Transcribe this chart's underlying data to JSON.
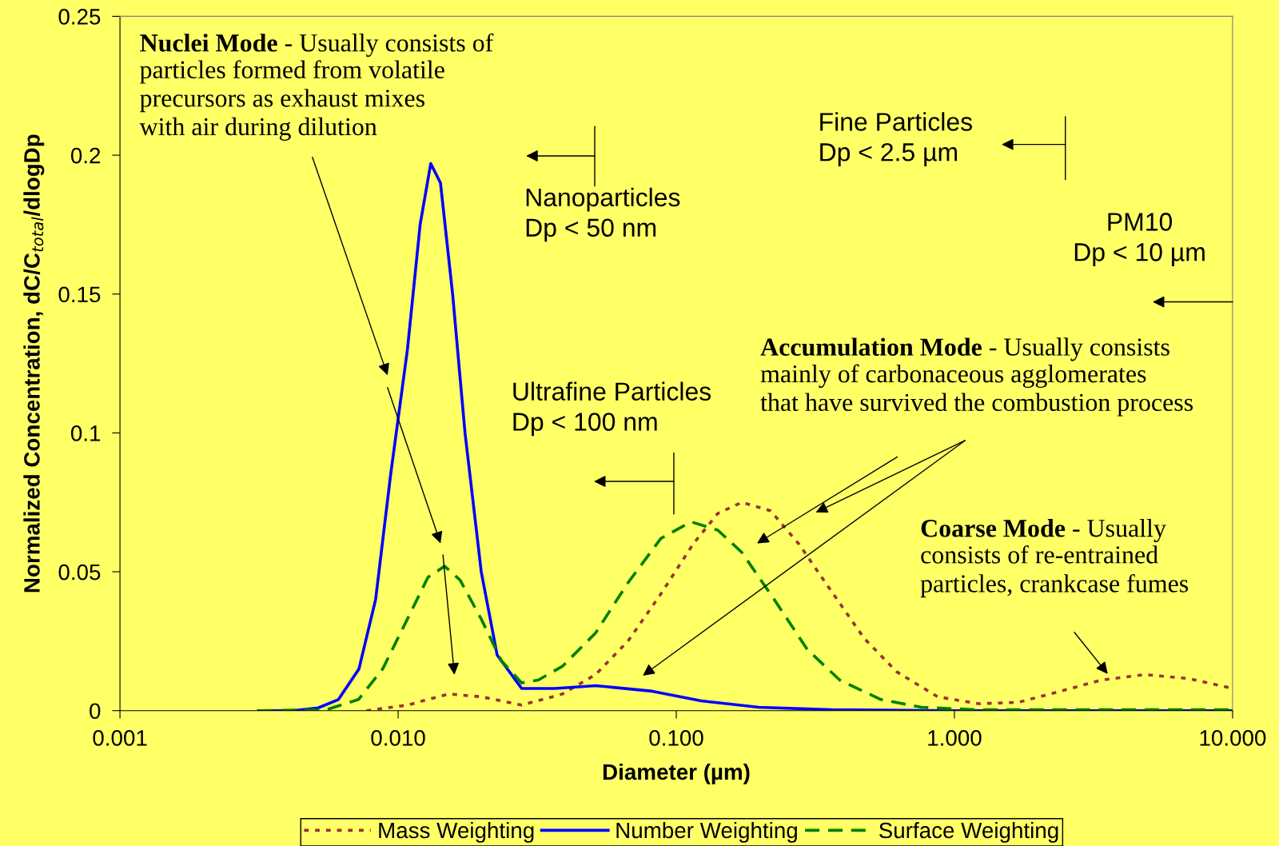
{
  "chart_data": {
    "type": "line",
    "xlabel": "Diameter (µm)",
    "ylabel": "Normalized Concentration, dC/C$_{total}$/dlogDp",
    "log": "x",
    "xlim": [
      0.001,
      10
    ],
    "ylim": [
      0,
      0.25
    ],
    "xticks": [
      0.001,
      {
        "value": 0.01,
        "label": "0.010"
      },
      {
        "value": 0.1,
        "label": "0.100"
      },
      {
        "value": 1,
        "label": "1.000"
      },
      {
        "value": 10,
        "label": "10.000"
      }
    ],
    "yticks": [
      0,
      0.05,
      0.1,
      0.15,
      0.2,
      0.25
    ],
    "legend": "bottom",
    "series": [
      {
        "name": "Mass Weighting",
        "color": "#993333",
        "line_style": "dotted",
        "x": [
          0.0077,
          0.0108,
          0.0152,
          0.0199,
          0.0278,
          0.039,
          0.0513,
          0.067,
          0.088,
          0.115,
          0.141,
          0.172,
          0.218,
          0.276,
          0.361,
          0.474,
          0.62,
          0.87,
          1.22,
          1.7,
          2.41,
          3.37,
          4.85,
          7.0,
          10
        ],
        "values": [
          0,
          0.002,
          0.006,
          0.005,
          0.002,
          0.006,
          0.013,
          0.025,
          0.042,
          0.06,
          0.071,
          0.075,
          0.072,
          0.06,
          0.043,
          0.026,
          0.014,
          0.005,
          0.0025,
          0.003,
          0.007,
          0.011,
          0.013,
          0.0115,
          0.008
        ]
      },
      {
        "name": "Number Weighting",
        "color": "#0000ff",
        "line_style": "solid",
        "x": [
          0.00315,
          0.0042,
          0.00516,
          0.0061,
          0.00723,
          0.0083,
          0.0094,
          0.0108,
          0.012,
          0.0131,
          0.0142,
          0.0157,
          0.0174,
          0.0199,
          0.0227,
          0.0278,
          0.0366,
          0.0513,
          0.082,
          0.123,
          0.198,
          0.361,
          1,
          10
        ],
        "values": [
          0,
          0,
          0.001,
          0.004,
          0.015,
          0.04,
          0.085,
          0.13,
          0.175,
          0.197,
          0.19,
          0.15,
          0.1,
          0.05,
          0.02,
          0.008,
          0.008,
          0.009,
          0.007,
          0.0035,
          0.0012,
          0.0003,
          0,
          0
        ]
      },
      {
        "name": "Surface Weighting",
        "color": "#008000",
        "line_style": "dashed",
        "x": [
          0.00315,
          0.0055,
          0.0072,
          0.0088,
          0.0108,
          0.0128,
          0.0147,
          0.0167,
          0.0199,
          0.0235,
          0.0278,
          0.0319,
          0.039,
          0.0513,
          0.067,
          0.088,
          0.113,
          0.141,
          0.172,
          0.225,
          0.296,
          0.387,
          0.544,
          0.762,
          1.22,
          10
        ],
        "values": [
          0,
          0.0003,
          0.004,
          0.015,
          0.033,
          0.048,
          0.052,
          0.047,
          0.033,
          0.018,
          0.01,
          0.011,
          0.016,
          0.028,
          0.046,
          0.062,
          0.068,
          0.065,
          0.057,
          0.04,
          0.022,
          0.011,
          0.004,
          0.0012,
          0.0003,
          0.0003
        ]
      }
    ],
    "annotations": [
      "Nuclei Mode - Usually consists of\nparticles formed from volatile\nprecursors as exhaust mixes\nwith air during dilution",
      "Nanoparticles\nDp < 50 nm",
      "Fine Particles\nDp < 2.5 µm",
      "PM10\nDp < 10 µm",
      "Ultrafine Particles\nDp < 100 nm",
      "Accumulation Mode - Usually consists\nmainly of carbonaceous agglomerates\nthat have survived the combustion process",
      "Coarse Mode - Usually\nconsists of re-entrained\nparticles, crankcase fumes"
    ]
  }
}
